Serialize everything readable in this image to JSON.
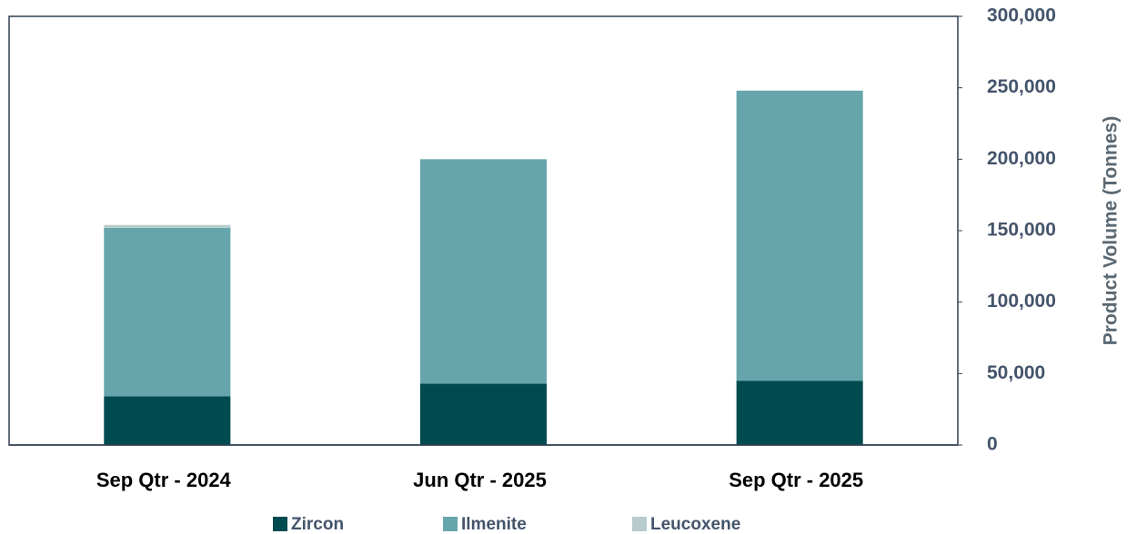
{
  "chart_data": {
    "type": "stacked_bar",
    "categories": [
      "Sep Qtr - 2024",
      "Jun Qtr - 2025",
      "Sep Qtr - 2025"
    ],
    "series": [
      {
        "name": "Zircon",
        "color": "#004b50",
        "values": [
          34000,
          43000,
          45000
        ]
      },
      {
        "name": "Ilmenite",
        "color": "#66a5ab",
        "values": [
          118000,
          157000,
          203000
        ]
      },
      {
        "name": "Leucoxene",
        "color": "#b9cccd",
        "values": [
          2000,
          0,
          0
        ]
      }
    ],
    "y_axis_label": "Product Volume (Tonnes)",
    "y_axis_side": "right",
    "ylim": [
      0,
      300000
    ],
    "yticks": [
      0,
      {
        "value": 50000,
        "label": "50,000"
      },
      {
        "value": 100000,
        "label": "100,000"
      },
      {
        "value": 150000,
        "label": "150,000"
      },
      {
        "value": 200000,
        "label": "200,000"
      },
      {
        "value": 250000,
        "label": "250,000"
      },
      {
        "value": 300000,
        "label": "300,000"
      }
    ],
    "grid": false,
    "legend": "bottom"
  }
}
